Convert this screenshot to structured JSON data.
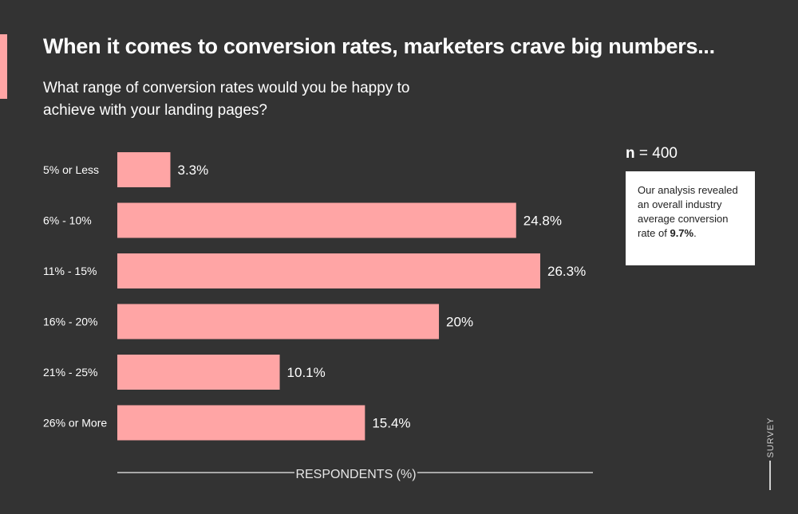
{
  "header": {
    "title": "When it comes to conversion rates, marketers crave big numbers...",
    "subtitle": "What range of conversion rates would you be happy to achieve with your landing pages?"
  },
  "colors": {
    "background": "#333333",
    "bar": "#ffa5a5",
    "text": "#ffffff",
    "accent": "#ffa5a5"
  },
  "sample": {
    "n_symbol": "n",
    "n_rest": " = 400"
  },
  "note": {
    "text_before": "Our analysis revealed an overall industry average conversion rate of ",
    "highlight": "9.7%",
    "text_after": "."
  },
  "tag": "SURVEY",
  "chart_data": {
    "type": "bar",
    "orientation": "horizontal",
    "categories": [
      "5% or Less",
      "6% - 10%",
      "11% - 15%",
      "16% - 20%",
      "21% - 25%",
      "26% or More"
    ],
    "values": [
      3.3,
      24.8,
      26.3,
      20,
      10.1,
      15.4
    ],
    "value_labels": [
      "3.3%",
      "24.8%",
      "26.3%",
      "20%",
      "10.1%",
      "15.4%"
    ],
    "xlabel": "RESPONDENTS (%)",
    "xlim": [
      0,
      30
    ],
    "grid": false
  }
}
